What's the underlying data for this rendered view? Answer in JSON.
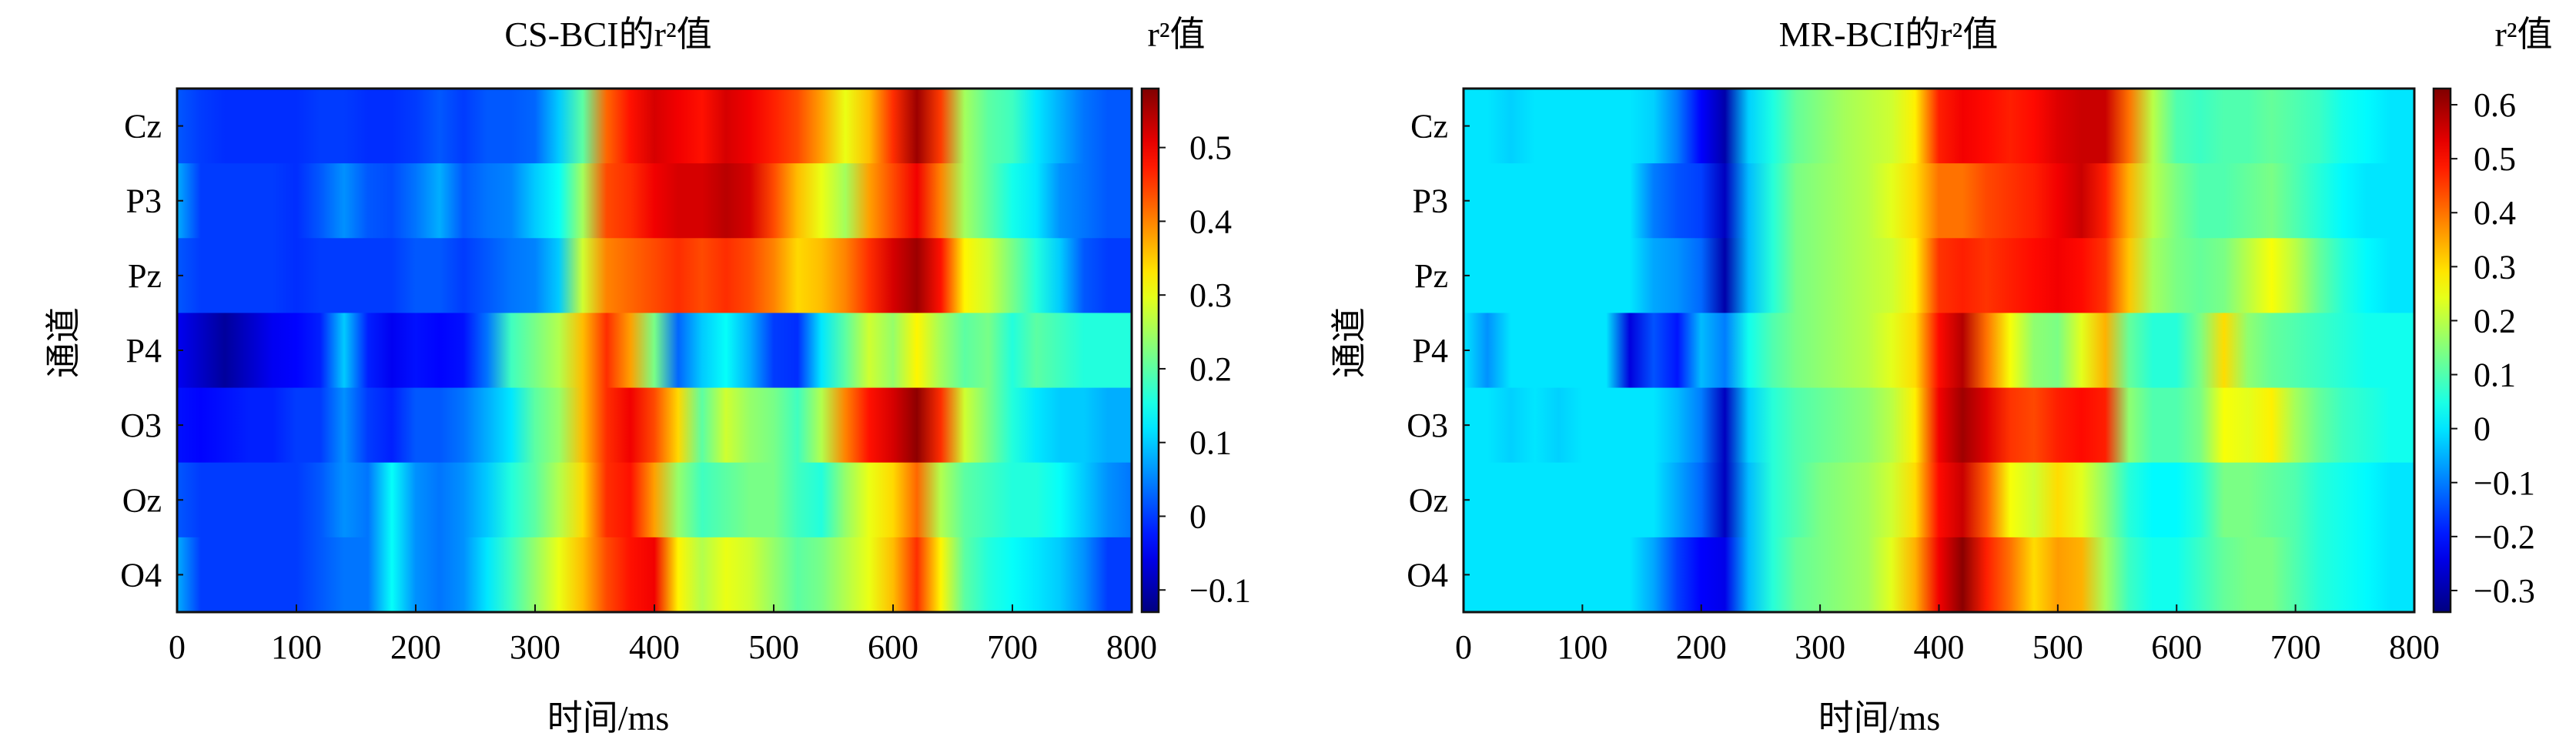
{
  "charts": [
    {
      "id": "left",
      "title": "CS-BCI的r²值",
      "colorbar_title": "r²值",
      "xlabel": "时间/ms",
      "ylabel": "通道",
      "xticks": [
        "0",
        "100",
        "200",
        "300",
        "400",
        "500",
        "600",
        "700",
        "800"
      ],
      "channels": [
        "Cz",
        "P3",
        "Pz",
        "P4",
        "O3",
        "Oz",
        "O4"
      ],
      "colorbar_ticks": [
        "0.5",
        "0.4",
        "0.3",
        "0.2",
        "0.1",
        "0",
        "−0.1"
      ],
      "colorbar_tick_values": [
        0.5,
        0.4,
        0.3,
        0.2,
        0.1,
        0,
        -0.1
      ],
      "vmin": -0.13,
      "vmax": 0.58
    },
    {
      "id": "right",
      "title": "MR-BCI的r²值",
      "colorbar_title": "r²值",
      "xlabel": "时间/ms",
      "ylabel": "通道",
      "xticks": [
        "0",
        "100",
        "200",
        "300",
        "400",
        "500",
        "600",
        "700",
        "800"
      ],
      "channels": [
        "Cz",
        "P3",
        "Pz",
        "P4",
        "O3",
        "Oz",
        "O4"
      ],
      "colorbar_ticks": [
        "0.6",
        "0.5",
        "0.4",
        "0.3",
        "0.2",
        "0.1",
        "0",
        "−0.1",
        "−0.2",
        "−0.3"
      ],
      "colorbar_tick_values": [
        0.6,
        0.5,
        0.4,
        0.3,
        0.2,
        0.1,
        0,
        -0.1,
        -0.2,
        -0.3
      ],
      "vmin": -0.34,
      "vmax": 0.63
    }
  ],
  "chart_data": [
    {
      "type": "heatmap",
      "title": "CS-BCI的r²值",
      "xlabel": "时间/ms",
      "ylabel": "通道",
      "xlim": [
        0,
        800
      ],
      "x_unit": "ms",
      "rows": [
        "Cz",
        "P3",
        "Pz",
        "P4",
        "O3",
        "Oz",
        "O4"
      ],
      "value_range": [
        -0.13,
        0.58
      ],
      "colormap": "jet",
      "time_points": [
        0,
        20,
        40,
        60,
        80,
        100,
        120,
        140,
        160,
        180,
        200,
        220,
        240,
        260,
        280,
        300,
        320,
        340,
        360,
        380,
        400,
        420,
        440,
        460,
        480,
        500,
        520,
        540,
        560,
        580,
        600,
        620,
        640,
        660,
        680,
        700,
        720,
        740,
        760,
        780,
        800
      ],
      "values": [
        [
          0.02,
          0.0,
          -0.01,
          -0.01,
          -0.01,
          -0.01,
          0.0,
          0.0,
          -0.01,
          -0.01,
          0.0,
          0.02,
          0.0,
          0.02,
          0.02,
          0.03,
          0.1,
          0.2,
          0.42,
          0.48,
          0.52,
          0.5,
          0.48,
          0.52,
          0.5,
          0.47,
          0.44,
          0.38,
          0.3,
          0.36,
          0.46,
          0.56,
          0.45,
          0.25,
          0.2,
          0.18,
          0.12,
          0.08,
          0.04,
          0.02,
          0.02
        ],
        [
          0.08,
          0.0,
          0.0,
          0.0,
          0.0,
          -0.01,
          0.02,
          0.06,
          0.02,
          0.01,
          0.04,
          0.08,
          0.02,
          0.04,
          0.05,
          0.1,
          0.14,
          0.25,
          0.44,
          0.46,
          0.5,
          0.52,
          0.52,
          0.54,
          0.52,
          0.44,
          0.36,
          0.3,
          0.25,
          0.38,
          0.44,
          0.5,
          0.4,
          0.25,
          0.2,
          0.15,
          0.12,
          0.06,
          0.04,
          0.02,
          0.02
        ],
        [
          0.02,
          0.0,
          0.0,
          0.0,
          0.0,
          -0.01,
          0.0,
          0.0,
          0.0,
          0.0,
          0.02,
          0.02,
          0.0,
          0.02,
          0.04,
          0.05,
          0.1,
          0.28,
          0.4,
          0.42,
          0.44,
          0.46,
          0.44,
          0.46,
          0.44,
          0.4,
          0.34,
          0.36,
          0.4,
          0.46,
          0.52,
          0.56,
          0.48,
          0.32,
          0.28,
          0.22,
          0.16,
          0.1,
          0.02,
          0.0,
          0.0
        ],
        [
          -0.05,
          -0.08,
          -0.11,
          -0.08,
          -0.05,
          -0.04,
          -0.02,
          0.1,
          -0.02,
          -0.05,
          -0.03,
          -0.04,
          -0.03,
          0.04,
          0.18,
          0.22,
          0.26,
          0.36,
          0.46,
          0.38,
          0.22,
          0.03,
          0.1,
          0.14,
          0.08,
          0.0,
          -0.01,
          0.12,
          0.2,
          0.28,
          0.24,
          0.32,
          0.25,
          0.2,
          0.22,
          0.16,
          0.2,
          0.18,
          0.16,
          0.16,
          0.16
        ],
        [
          -0.03,
          -0.04,
          -0.03,
          -0.02,
          -0.02,
          0.0,
          0.0,
          0.06,
          0.0,
          -0.02,
          0.02,
          0.02,
          0.04,
          0.08,
          0.12,
          0.2,
          0.24,
          0.36,
          0.46,
          0.5,
          0.44,
          0.34,
          0.2,
          0.28,
          0.24,
          0.22,
          0.18,
          0.26,
          0.4,
          0.48,
          0.52,
          0.57,
          0.46,
          0.28,
          0.22,
          0.16,
          0.12,
          0.1,
          0.1,
          0.08,
          0.08
        ],
        [
          0.02,
          0.0,
          0.0,
          0.0,
          0.0,
          0.0,
          0.02,
          0.06,
          0.04,
          0.14,
          0.06,
          0.04,
          0.06,
          0.1,
          0.16,
          0.2,
          0.26,
          0.34,
          0.46,
          0.48,
          0.38,
          0.24,
          0.18,
          0.2,
          0.22,
          0.22,
          0.18,
          0.16,
          0.24,
          0.3,
          0.34,
          0.42,
          0.26,
          0.2,
          0.18,
          0.16,
          0.16,
          0.14,
          0.1,
          0.06,
          0.04
        ],
        [
          0.08,
          0.0,
          0.0,
          0.0,
          0.0,
          0.0,
          0.02,
          0.04,
          0.04,
          0.14,
          0.06,
          0.04,
          0.06,
          0.12,
          0.18,
          0.24,
          0.3,
          0.36,
          0.44,
          0.48,
          0.5,
          0.32,
          0.26,
          0.3,
          0.28,
          0.24,
          0.2,
          0.22,
          0.26,
          0.3,
          0.36,
          0.46,
          0.32,
          0.2,
          0.16,
          0.14,
          0.12,
          0.1,
          0.06,
          0.0,
          0.0
        ]
      ]
    },
    {
      "type": "heatmap",
      "title": "MR-BCI的r²值",
      "xlabel": "时间/ms",
      "ylabel": "通道",
      "xlim": [
        0,
        800
      ],
      "x_unit": "ms",
      "rows": [
        "Cz",
        "P3",
        "Pz",
        "P4",
        "O3",
        "Oz",
        "O4"
      ],
      "value_range": [
        -0.34,
        0.63
      ],
      "colormap": "jet",
      "time_points": [
        0,
        20,
        40,
        60,
        80,
        100,
        120,
        140,
        160,
        180,
        200,
        220,
        240,
        260,
        280,
        300,
        320,
        340,
        360,
        380,
        400,
        420,
        440,
        460,
        480,
        500,
        520,
        540,
        560,
        580,
        600,
        620,
        640,
        660,
        680,
        700,
        720,
        740,
        760,
        780,
        800
      ],
      "values": [
        [
          0.0,
          0.0,
          -0.02,
          0.0,
          0.0,
          0.0,
          0.0,
          0.0,
          -0.02,
          -0.1,
          -0.22,
          -0.3,
          -0.02,
          0.05,
          0.12,
          0.15,
          0.18,
          0.2,
          0.22,
          0.28,
          0.48,
          0.52,
          0.5,
          0.48,
          0.5,
          0.54,
          0.56,
          0.56,
          0.4,
          0.2,
          0.1,
          0.08,
          0.1,
          0.1,
          0.12,
          0.1,
          0.08,
          0.04,
          0.02,
          0.0,
          0.0
        ],
        [
          0.0,
          0.0,
          0.0,
          0.0,
          0.0,
          0.0,
          0.0,
          0.0,
          -0.1,
          -0.14,
          -0.16,
          -0.28,
          -0.04,
          0.06,
          0.14,
          0.16,
          0.18,
          0.2,
          0.24,
          0.3,
          0.4,
          0.4,
          0.44,
          0.46,
          0.48,
          0.52,
          0.56,
          0.48,
          0.34,
          0.2,
          0.14,
          0.1,
          0.1,
          0.12,
          0.14,
          0.1,
          0.06,
          0.02,
          0.0,
          0.0,
          0.0
        ],
        [
          0.0,
          0.0,
          0.0,
          0.0,
          0.0,
          0.0,
          0.0,
          0.0,
          -0.06,
          -0.08,
          -0.12,
          -0.3,
          -0.04,
          0.06,
          0.14,
          0.16,
          0.18,
          0.2,
          0.22,
          0.28,
          0.46,
          0.48,
          0.46,
          0.48,
          0.5,
          0.52,
          0.5,
          0.46,
          0.32,
          0.18,
          0.14,
          0.12,
          0.14,
          0.2,
          0.26,
          0.2,
          0.12,
          0.06,
          0.02,
          0.0,
          0.0
        ],
        [
          0.0,
          -0.08,
          0.0,
          0.0,
          0.0,
          0.0,
          0.0,
          -0.25,
          -0.14,
          -0.2,
          -0.04,
          -0.1,
          0.04,
          0.1,
          0.14,
          0.16,
          0.18,
          0.2,
          0.24,
          0.3,
          0.5,
          0.58,
          0.4,
          0.26,
          0.16,
          0.14,
          0.24,
          0.34,
          0.12,
          0.06,
          0.06,
          0.14,
          0.3,
          0.16,
          0.12,
          0.1,
          0.08,
          0.06,
          0.04,
          0.04,
          0.04
        ],
        [
          0.0,
          0.0,
          -0.02,
          0.0,
          -0.02,
          0.0,
          0.0,
          0.0,
          0.0,
          -0.04,
          -0.1,
          -0.28,
          -0.02,
          0.06,
          0.1,
          0.12,
          0.14,
          0.16,
          0.2,
          0.28,
          0.52,
          0.6,
          0.54,
          0.46,
          0.44,
          0.48,
          0.5,
          0.48,
          0.16,
          0.1,
          0.1,
          0.14,
          0.26,
          0.24,
          0.28,
          0.18,
          0.12,
          0.08,
          0.06,
          0.04,
          0.04
        ],
        [
          0.0,
          0.0,
          0.0,
          0.0,
          0.0,
          0.0,
          0.0,
          0.0,
          0.0,
          -0.06,
          -0.12,
          -0.28,
          -0.04,
          0.06,
          0.1,
          0.14,
          0.16,
          0.18,
          0.22,
          0.3,
          0.5,
          0.56,
          0.42,
          0.26,
          0.22,
          0.3,
          0.24,
          0.16,
          0.06,
          0.02,
          0.02,
          0.06,
          0.14,
          0.14,
          0.12,
          0.1,
          0.06,
          0.04,
          0.02,
          0.0,
          0.0
        ],
        [
          0.0,
          0.0,
          0.0,
          0.0,
          0.0,
          0.0,
          0.0,
          0.0,
          -0.06,
          -0.16,
          -0.22,
          -0.24,
          -0.04,
          0.06,
          0.12,
          0.14,
          0.16,
          0.18,
          0.24,
          0.34,
          0.52,
          0.62,
          0.48,
          0.4,
          0.3,
          0.36,
          0.34,
          0.18,
          0.08,
          0.04,
          0.04,
          0.08,
          0.12,
          0.14,
          0.14,
          0.1,
          0.06,
          0.04,
          0.02,
          0.0,
          0.0
        ]
      ]
    }
  ]
}
